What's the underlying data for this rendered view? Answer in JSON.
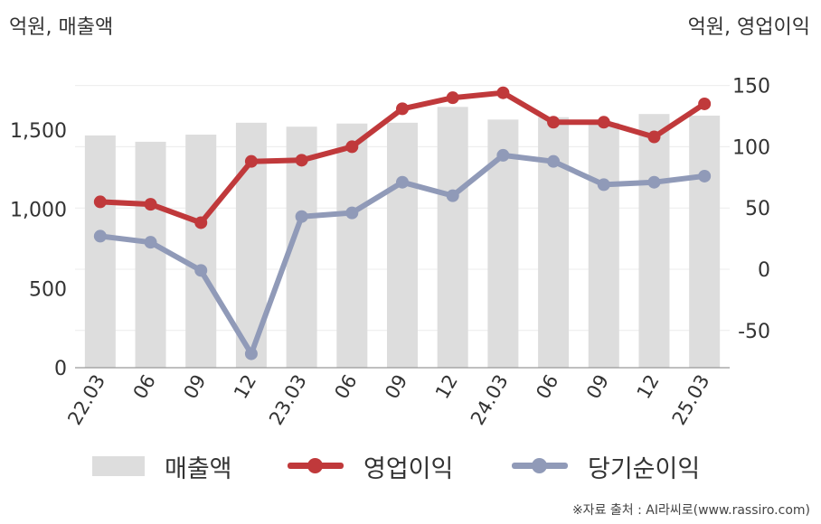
{
  "units": {
    "left": "억원, 매출액",
    "right": "억원, 영업이익"
  },
  "chart_data": {
    "type": "bar+line",
    "categories": [
      "22.03",
      "06",
      "09",
      "12",
      "23.03",
      "06",
      "09",
      "12",
      "24.03",
      "06",
      "09",
      "12",
      "25.03"
    ],
    "y_left": {
      "ylim": [
        0,
        1800
      ],
      "ticks": [
        0,
        500,
        1000,
        1500
      ],
      "tick_labels": [
        "0",
        "500",
        "1,000",
        "1,500"
      ]
    },
    "y_right": {
      "ylim": [
        -80,
        170
      ],
      "ticks": [
        -50,
        0,
        50,
        100,
        150
      ],
      "tick_labels": [
        "-50",
        "0",
        "50",
        "100",
        "150"
      ]
    },
    "grid": true,
    "legend_position": "bottom",
    "series": [
      {
        "name": "매출액",
        "kind": "bar",
        "axis": "left",
        "color": "#dddddd",
        "values": [
          1465,
          1425,
          1470,
          1545,
          1520,
          1540,
          1545,
          1645,
          1565,
          1580,
          1545,
          1600,
          1590
        ]
      },
      {
        "name": "영업이익",
        "kind": "line",
        "axis": "right",
        "color": "#c0393b",
        "values": [
          55,
          53,
          38,
          88,
          89,
          100,
          131,
          140,
          144,
          120,
          120,
          108,
          135
        ]
      },
      {
        "name": "당기순이익",
        "kind": "line",
        "axis": "right",
        "color": "#909ab8",
        "values": [
          27,
          22,
          -1,
          -69,
          43,
          46,
          71,
          60,
          93,
          88,
          69,
          71,
          76
        ]
      }
    ]
  },
  "source": "※자료 출처 : AI라씨로(www.rassiro.com)"
}
